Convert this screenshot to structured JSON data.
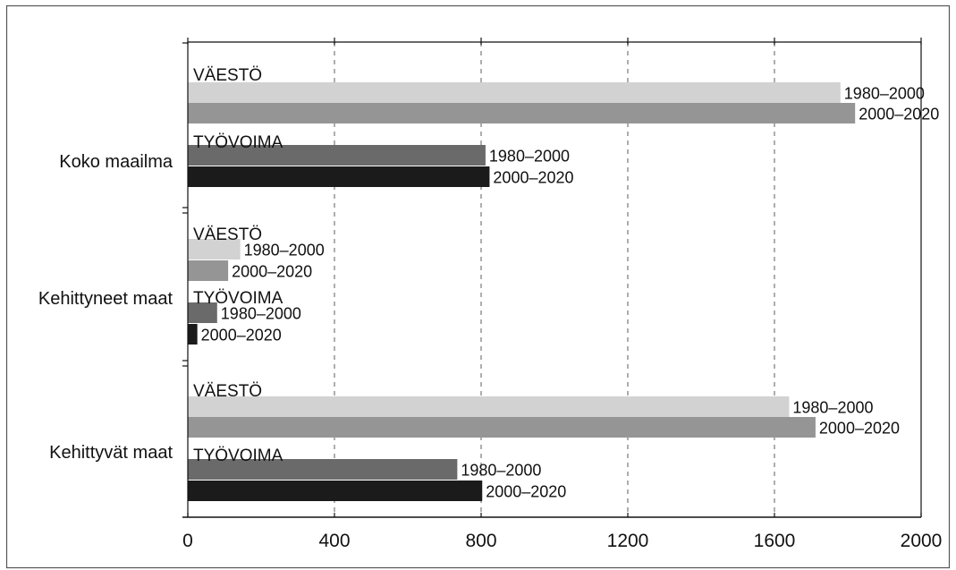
{
  "chart_data": {
    "type": "bar",
    "orientation": "horizontal",
    "xlim": [
      0,
      2000
    ],
    "x_ticks": [
      "0",
      "400",
      "800",
      "1200",
      "1600",
      "2000"
    ],
    "grid": "vertical dashed lines at 400, 800, 1200, 1600",
    "groups": [
      {
        "name": "Koko maailma",
        "blocks": [
          {
            "label": "VÄESTÖ",
            "bars": [
              {
                "label": "1980–2000",
                "value": 1780,
                "color": "#d2d2d2"
              },
              {
                "label": "2000–2020",
                "value": 1820,
                "color": "#959595"
              }
            ]
          },
          {
            "label": "TYÖVOIMA",
            "bars": [
              {
                "label": "1980–2000",
                "value": 812,
                "color": "#6a6a6a"
              },
              {
                "label": "2000–2020",
                "value": 823,
                "color": "#1b1b1b"
              }
            ]
          }
        ]
      },
      {
        "name": "Kehittyneet maat",
        "blocks": [
          {
            "label": "VÄESTÖ",
            "bars": [
              {
                "label": "1980–2000",
                "value": 143,
                "color": "#d2d2d2"
              },
              {
                "label": "2000–2020",
                "value": 110,
                "color": "#959595"
              }
            ]
          },
          {
            "label": "TYÖVOIMA",
            "bars": [
              {
                "label": "1980–2000",
                "value": 80,
                "color": "#6a6a6a"
              },
              {
                "label": "2000–2020",
                "value": 26,
                "color": "#1b1b1b"
              }
            ]
          }
        ]
      },
      {
        "name": "Kehittyvät maat",
        "blocks": [
          {
            "label": "VÄESTÖ",
            "bars": [
              {
                "label": "1980–2000",
                "value": 1640,
                "color": "#d2d2d2"
              },
              {
                "label": "2000–2020",
                "value": 1712,
                "color": "#959595"
              }
            ]
          },
          {
            "label": "TYÖVOIMA",
            "bars": [
              {
                "label": "1980–2000",
                "value": 735,
                "color": "#6a6a6a"
              },
              {
                "label": "2000–2020",
                "value": 803,
                "color": "#1b1b1b"
              }
            ]
          }
        ]
      }
    ]
  }
}
